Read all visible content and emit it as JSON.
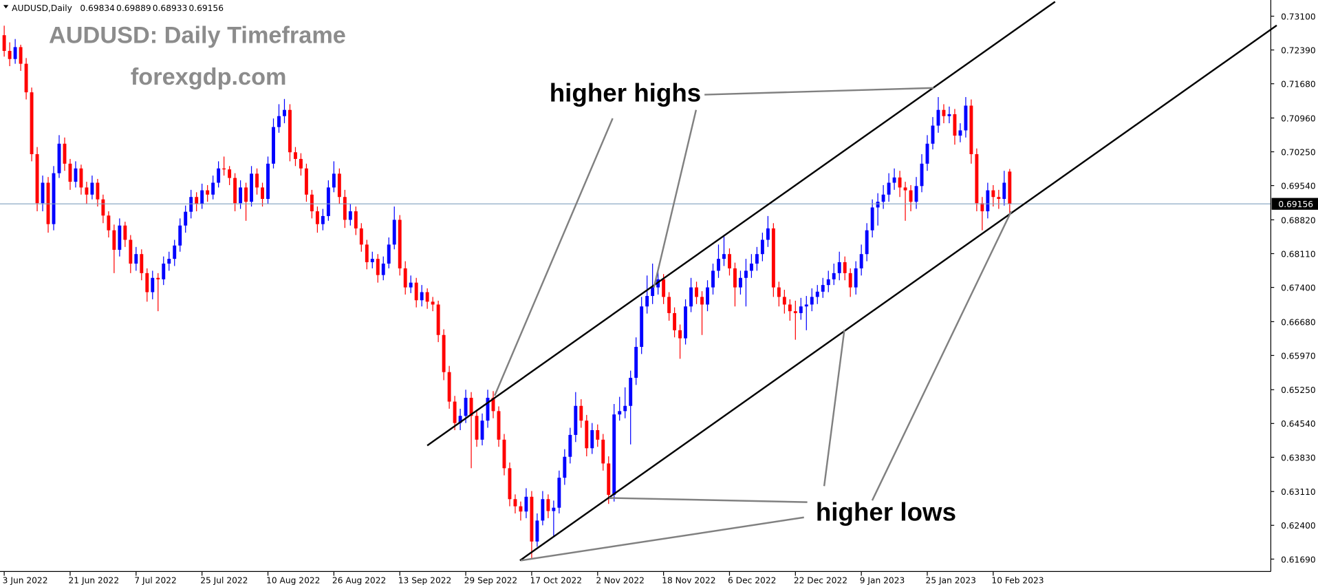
{
  "chart_data": {
    "type": "candlestick",
    "symbol": "AUDUSD,Daily",
    "title": "AUDUSD: Daily Timeframe",
    "subtitle": "forexgdp.com",
    "annotations": [
      "higher highs",
      "higher lows"
    ],
    "up_color": "#0000ff",
    "down_color": "#ff0000",
    "price_line_color": "#7f9fbf",
    "ylim": [
      0.6143,
      0.7344
    ],
    "yticks": [
      {
        "value": 0.731,
        "label": "0.73100"
      },
      {
        "value": 0.7239,
        "label": "0.72390"
      },
      {
        "value": 0.7168,
        "label": "0.71680"
      },
      {
        "value": 0.7096,
        "label": "0.70960"
      },
      {
        "value": 0.7025,
        "label": "0.70250"
      },
      {
        "value": 0.6954,
        "label": "0.69540"
      },
      {
        "value": 0.6882,
        "label": "0.68820"
      },
      {
        "value": 0.6811,
        "label": "0.68110"
      },
      {
        "value": 0.674,
        "label": "0.67400"
      },
      {
        "value": 0.6668,
        "label": "0.66680"
      },
      {
        "value": 0.6597,
        "label": "0.65970"
      },
      {
        "value": 0.6525,
        "label": "0.65250"
      },
      {
        "value": 0.6454,
        "label": "0.64540"
      },
      {
        "value": 0.6383,
        "label": "0.63830"
      },
      {
        "value": 0.6311,
        "label": "0.63110"
      },
      {
        "value": 0.624,
        "label": "0.62400"
      },
      {
        "value": 0.6169,
        "label": "0.61690"
      }
    ],
    "categories": [
      "3 Jun 2022",
      null,
      null,
      null,
      null,
      null,
      null,
      null,
      null,
      null,
      null,
      null,
      "21 Jun 2022",
      null,
      null,
      null,
      null,
      null,
      null,
      null,
      null,
      null,
      null,
      null,
      "7 Jul 2022",
      null,
      null,
      null,
      null,
      null,
      null,
      null,
      null,
      null,
      null,
      null,
      "25 Jul 2022",
      null,
      null,
      null,
      null,
      null,
      null,
      null,
      null,
      null,
      null,
      null,
      "10 Aug 2022",
      null,
      null,
      null,
      null,
      null,
      null,
      null,
      null,
      null,
      null,
      null,
      "26 Aug 2022",
      null,
      null,
      null,
      null,
      null,
      null,
      null,
      null,
      null,
      null,
      null,
      "13 Sep 2022",
      null,
      null,
      null,
      null,
      null,
      null,
      null,
      null,
      null,
      null,
      null,
      "29 Sep 2022",
      null,
      null,
      null,
      null,
      null,
      null,
      null,
      null,
      null,
      null,
      null,
      "17 Oct 2022",
      null,
      null,
      null,
      null,
      null,
      null,
      null,
      null,
      null,
      null,
      null,
      "2 Nov 2022",
      null,
      null,
      null,
      null,
      null,
      null,
      null,
      null,
      null,
      null,
      null,
      "18 Nov 2022",
      null,
      null,
      null,
      null,
      null,
      null,
      null,
      null,
      null,
      null,
      null,
      "6 Dec 2022",
      null,
      null,
      null,
      null,
      null,
      null,
      null,
      null,
      null,
      null,
      null,
      "22 Dec 2022",
      null,
      null,
      null,
      null,
      null,
      null,
      null,
      null,
      null,
      null,
      null,
      "9 Jan 2023",
      null,
      null,
      null,
      null,
      null,
      null,
      null,
      null,
      null,
      null,
      null,
      "25 Jan 2023",
      null,
      null,
      null,
      null,
      null,
      null,
      null,
      null,
      null,
      null,
      null,
      "10 Feb 2023",
      null,
      null,
      null
    ],
    "ohlc": [
      [
        0.727,
        0.729,
        0.7225,
        0.7237
      ],
      [
        0.7237,
        0.7255,
        0.7205,
        0.722
      ],
      [
        0.722,
        0.7262,
        0.721,
        0.7245
      ],
      [
        0.7245,
        0.725,
        0.7195,
        0.721
      ],
      [
        0.721,
        0.7222,
        0.7135,
        0.715
      ],
      [
        0.715,
        0.716,
        0.7005,
        0.702
      ],
      [
        0.702,
        0.7035,
        0.69,
        0.6917
      ],
      [
        0.6917,
        0.6975,
        0.69,
        0.696
      ],
      [
        0.696,
        0.6972,
        0.6855,
        0.6873
      ],
      [
        0.6873,
        0.6995,
        0.686,
        0.698
      ],
      [
        0.698,
        0.706,
        0.697,
        0.7042
      ],
      [
        0.7042,
        0.7055,
        0.6985,
        0.7
      ],
      [
        0.7,
        0.701,
        0.6945,
        0.6962
      ],
      [
        0.6962,
        0.7005,
        0.695,
        0.699
      ],
      [
        0.699,
        0.6998,
        0.6935,
        0.695
      ],
      [
        0.695,
        0.6962,
        0.6915,
        0.6935
      ],
      [
        0.6935,
        0.6975,
        0.6925,
        0.696
      ],
      [
        0.696,
        0.6968,
        0.691,
        0.6925
      ],
      [
        0.6925,
        0.6935,
        0.6875,
        0.6891
      ],
      [
        0.6891,
        0.69,
        0.6845,
        0.686
      ],
      [
        0.686,
        0.6872,
        0.677,
        0.6819
      ],
      [
        0.6819,
        0.6885,
        0.6805,
        0.687
      ],
      [
        0.687,
        0.6878,
        0.6825,
        0.684
      ],
      [
        0.684,
        0.685,
        0.677,
        0.679
      ],
      [
        0.679,
        0.6825,
        0.6775,
        0.681
      ],
      [
        0.681,
        0.682,
        0.6755,
        0.677
      ],
      [
        0.677,
        0.678,
        0.671,
        0.673
      ],
      [
        0.673,
        0.6775,
        0.6715,
        0.676
      ],
      [
        0.676,
        0.677,
        0.669,
        0.6757
      ],
      [
        0.6757,
        0.6805,
        0.6745,
        0.679
      ],
      [
        0.679,
        0.6815,
        0.6775,
        0.68
      ],
      [
        0.68,
        0.684,
        0.6785,
        0.6828
      ],
      [
        0.6828,
        0.6885,
        0.6815,
        0.687
      ],
      [
        0.687,
        0.6912,
        0.6855,
        0.6899
      ],
      [
        0.6899,
        0.6945,
        0.6885,
        0.693
      ],
      [
        0.693,
        0.694,
        0.69,
        0.6915
      ],
      [
        0.6915,
        0.6958,
        0.6905,
        0.6944
      ],
      [
        0.6944,
        0.6955,
        0.692,
        0.6935
      ],
      [
        0.6935,
        0.6975,
        0.6925,
        0.696
      ],
      [
        0.696,
        0.7005,
        0.695,
        0.699
      ],
      [
        0.699,
        0.7015,
        0.6975,
        0.6988
      ],
      [
        0.6988,
        0.6995,
        0.6955,
        0.697
      ],
      [
        0.697,
        0.698,
        0.69,
        0.6917
      ],
      [
        0.6917,
        0.6965,
        0.6905,
        0.695
      ],
      [
        0.695,
        0.696,
        0.688,
        0.692
      ],
      [
        0.692,
        0.6995,
        0.691,
        0.6979
      ],
      [
        0.6979,
        0.699,
        0.6935,
        0.695
      ],
      [
        0.695,
        0.696,
        0.691,
        0.6926
      ],
      [
        0.6926,
        0.7015,
        0.6915,
        0.7
      ],
      [
        0.7,
        0.7095,
        0.699,
        0.7077
      ],
      [
        0.7077,
        0.7125,
        0.7065,
        0.71
      ],
      [
        0.71,
        0.7136,
        0.7085,
        0.7113
      ],
      [
        0.7113,
        0.7125,
        0.7005,
        0.7024
      ],
      [
        0.7024,
        0.7035,
        0.6995,
        0.701
      ],
      [
        0.701,
        0.7022,
        0.6975,
        0.699
      ],
      [
        0.699,
        0.7,
        0.692,
        0.6935
      ],
      [
        0.6935,
        0.6945,
        0.6885,
        0.69
      ],
      [
        0.69,
        0.691,
        0.6855,
        0.6873
      ],
      [
        0.6873,
        0.6905,
        0.686,
        0.689
      ],
      [
        0.689,
        0.6965,
        0.688,
        0.695
      ],
      [
        0.695,
        0.7005,
        0.694,
        0.6979
      ],
      [
        0.6979,
        0.699,
        0.6915,
        0.693
      ],
      [
        0.693,
        0.6945,
        0.6865,
        0.6882
      ],
      [
        0.6882,
        0.6915,
        0.687,
        0.69
      ],
      [
        0.69,
        0.691,
        0.685,
        0.6864
      ],
      [
        0.6864,
        0.6875,
        0.6815,
        0.683
      ],
      [
        0.683,
        0.684,
        0.6778,
        0.6793
      ],
      [
        0.6793,
        0.6815,
        0.678,
        0.68
      ],
      [
        0.68,
        0.681,
        0.675,
        0.6766
      ],
      [
        0.6766,
        0.6805,
        0.6755,
        0.679
      ],
      [
        0.679,
        0.6845,
        0.678,
        0.683
      ],
      [
        0.683,
        0.691,
        0.682,
        0.6882
      ],
      [
        0.6882,
        0.6892,
        0.6765,
        0.678
      ],
      [
        0.678,
        0.6795,
        0.6725,
        0.674
      ],
      [
        0.674,
        0.6765,
        0.6728,
        0.675
      ],
      [
        0.675,
        0.676,
        0.6698,
        0.6713
      ],
      [
        0.6713,
        0.6745,
        0.67,
        0.673
      ],
      [
        0.673,
        0.6738,
        0.6695,
        0.671
      ],
      [
        0.671,
        0.672,
        0.669,
        0.6704
      ],
      [
        0.6704,
        0.6712,
        0.6625,
        0.664
      ],
      [
        0.664,
        0.6652,
        0.6545,
        0.6562
      ],
      [
        0.6562,
        0.6575,
        0.6485,
        0.65
      ],
      [
        0.65,
        0.6512,
        0.644,
        0.6455
      ],
      [
        0.6455,
        0.6485,
        0.644,
        0.647
      ],
      [
        0.647,
        0.6525,
        0.6455,
        0.6508
      ],
      [
        0.6508,
        0.652,
        0.636,
        0.647
      ],
      [
        0.647,
        0.648,
        0.6405,
        0.642
      ],
      [
        0.642,
        0.6475,
        0.6408,
        0.646
      ],
      [
        0.646,
        0.6525,
        0.6445,
        0.6508
      ],
      [
        0.6508,
        0.6522,
        0.6465,
        0.648
      ],
      [
        0.648,
        0.649,
        0.6405,
        0.642
      ],
      [
        0.642,
        0.6432,
        0.6345,
        0.636
      ],
      [
        0.636,
        0.6372,
        0.628,
        0.6295
      ],
      [
        0.6295,
        0.6305,
        0.6265,
        0.628
      ],
      [
        0.628,
        0.629,
        0.625,
        0.6269
      ],
      [
        0.6269,
        0.6318,
        0.6255,
        0.63
      ],
      [
        0.63,
        0.6312,
        0.617,
        0.6206
      ],
      [
        0.6206,
        0.6265,
        0.6195,
        0.625
      ],
      [
        0.625,
        0.6312,
        0.624,
        0.6295
      ],
      [
        0.6295,
        0.6305,
        0.6255,
        0.627
      ],
      [
        0.627,
        0.6292,
        0.6215,
        0.6277
      ],
      [
        0.6277,
        0.6355,
        0.6265,
        0.634
      ],
      [
        0.634,
        0.64,
        0.6325,
        0.6384
      ],
      [
        0.6384,
        0.6445,
        0.637,
        0.643
      ],
      [
        0.643,
        0.652,
        0.6415,
        0.6491
      ],
      [
        0.6491,
        0.6505,
        0.6445,
        0.646
      ],
      [
        0.646,
        0.6472,
        0.6385,
        0.6402
      ],
      [
        0.6402,
        0.6455,
        0.639,
        0.644
      ],
      [
        0.644,
        0.6452,
        0.6405,
        0.642
      ],
      [
        0.642,
        0.6432,
        0.6355,
        0.637
      ],
      [
        0.637,
        0.6385,
        0.6285,
        0.6304
      ],
      [
        0.6304,
        0.6495,
        0.629,
        0.6473
      ],
      [
        0.6473,
        0.651,
        0.646,
        0.648
      ],
      [
        0.648,
        0.653,
        0.6465,
        0.6491
      ],
      [
        0.6491,
        0.6565,
        0.641,
        0.655
      ],
      [
        0.655,
        0.6635,
        0.6535,
        0.6615
      ],
      [
        0.6615,
        0.672,
        0.66,
        0.67
      ],
      [
        0.67,
        0.6765,
        0.6685,
        0.6722
      ],
      [
        0.6722,
        0.679,
        0.6705,
        0.674
      ],
      [
        0.674,
        0.6775,
        0.6725,
        0.6757
      ],
      [
        0.6757,
        0.6768,
        0.6705,
        0.672
      ],
      [
        0.672,
        0.673,
        0.667,
        0.6686
      ],
      [
        0.6686,
        0.6698,
        0.6635,
        0.665
      ],
      [
        0.665,
        0.6662,
        0.659,
        0.6633
      ],
      [
        0.6633,
        0.6715,
        0.662,
        0.67
      ],
      [
        0.67,
        0.676,
        0.6688,
        0.674
      ],
      [
        0.674,
        0.6752,
        0.6705,
        0.672
      ],
      [
        0.672,
        0.6732,
        0.664,
        0.6704
      ],
      [
        0.6704,
        0.6755,
        0.669,
        0.674
      ],
      [
        0.674,
        0.679,
        0.6725,
        0.6775
      ],
      [
        0.6775,
        0.683,
        0.676,
        0.68
      ],
      [
        0.68,
        0.685,
        0.6785,
        0.681
      ],
      [
        0.681,
        0.6822,
        0.6765,
        0.678
      ],
      [
        0.678,
        0.6792,
        0.67,
        0.674
      ],
      [
        0.674,
        0.6775,
        0.6725,
        0.676
      ],
      [
        0.676,
        0.68,
        0.67,
        0.6775
      ],
      [
        0.6775,
        0.681,
        0.676,
        0.679
      ],
      [
        0.679,
        0.6825,
        0.6775,
        0.681
      ],
      [
        0.681,
        0.6855,
        0.6795,
        0.684
      ],
      [
        0.684,
        0.689,
        0.6825,
        0.6864
      ],
      [
        0.6864,
        0.6875,
        0.672,
        0.674
      ],
      [
        0.674,
        0.6752,
        0.67,
        0.672
      ],
      [
        0.672,
        0.6735,
        0.6685,
        0.6704
      ],
      [
        0.6704,
        0.6715,
        0.667,
        0.669
      ],
      [
        0.669,
        0.6712,
        0.663,
        0.6686
      ],
      [
        0.6686,
        0.6718,
        0.6672,
        0.67
      ],
      [
        0.67,
        0.6722,
        0.665,
        0.6704
      ],
      [
        0.6704,
        0.6738,
        0.669,
        0.672
      ],
      [
        0.672,
        0.6745,
        0.6705,
        0.6731
      ],
      [
        0.6731,
        0.676,
        0.6718,
        0.6745
      ],
      [
        0.6745,
        0.6775,
        0.673,
        0.6757
      ],
      [
        0.6757,
        0.679,
        0.6745,
        0.677
      ],
      [
        0.677,
        0.6815,
        0.6755,
        0.6793
      ],
      [
        0.6793,
        0.6805,
        0.6755,
        0.677
      ],
      [
        0.677,
        0.678,
        0.672,
        0.674
      ],
      [
        0.674,
        0.6795,
        0.6725,
        0.678
      ],
      [
        0.678,
        0.683,
        0.6765,
        0.681
      ],
      [
        0.681,
        0.6875,
        0.6795,
        0.686
      ],
      [
        0.686,
        0.6925,
        0.6845,
        0.6908
      ],
      [
        0.6908,
        0.6938,
        0.687,
        0.692
      ],
      [
        0.692,
        0.6955,
        0.6905,
        0.6935
      ],
      [
        0.6935,
        0.698,
        0.692,
        0.696
      ],
      [
        0.696,
        0.699,
        0.6945,
        0.6971
      ],
      [
        0.6971,
        0.6985,
        0.693,
        0.695
      ],
      [
        0.695,
        0.6962,
        0.688,
        0.6944
      ],
      [
        0.6944,
        0.6955,
        0.69,
        0.692
      ],
      [
        0.692,
        0.6972,
        0.6905,
        0.6953
      ],
      [
        0.6953,
        0.702,
        0.694,
        0.7
      ],
      [
        0.7,
        0.706,
        0.6985,
        0.7042
      ],
      [
        0.7042,
        0.7098,
        0.703,
        0.708
      ],
      [
        0.708,
        0.714,
        0.7065,
        0.7113
      ],
      [
        0.7113,
        0.7125,
        0.7085,
        0.71
      ],
      [
        0.71,
        0.712,
        0.7085,
        0.7104
      ],
      [
        0.7104,
        0.7115,
        0.704,
        0.7059
      ],
      [
        0.7059,
        0.7085,
        0.7045,
        0.707
      ],
      [
        0.707,
        0.714,
        0.7055,
        0.7122
      ],
      [
        0.7122,
        0.7135,
        0.7,
        0.702
      ],
      [
        0.702,
        0.7032,
        0.69,
        0.6917
      ],
      [
        0.6917,
        0.693,
        0.686,
        0.69
      ],
      [
        0.69,
        0.696,
        0.6885,
        0.6944
      ],
      [
        0.6944,
        0.6955,
        0.691,
        0.693
      ],
      [
        0.693,
        0.6945,
        0.6905,
        0.6926
      ],
      [
        0.6926,
        0.6985,
        0.6912,
        0.696
      ],
      [
        0.69834,
        0.69889,
        0.68933,
        0.69156
      ]
    ]
  }
}
